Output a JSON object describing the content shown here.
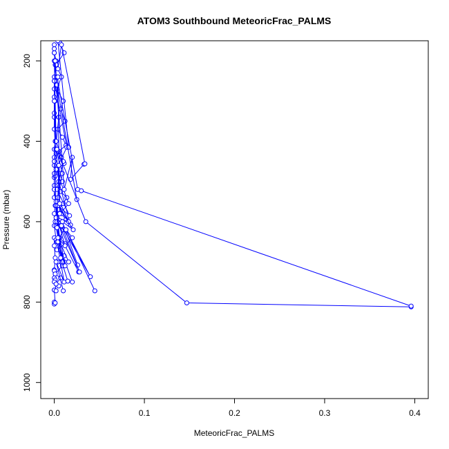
{
  "chart_data": {
    "type": "line",
    "title": "ATOM3 Southbound MeteoricFrac_PALMS",
    "xlabel": "MeteoricFrac_PALMS",
    "ylabel": "Pressure (mbar)",
    "xlim": [
      -0.015,
      0.415
    ],
    "ylim": [
      1040,
      150
    ],
    "y_reversed": true,
    "grid": false,
    "color": "#0000ff",
    "x_ticks": [
      0,
      0.1,
      0.2,
      0.3,
      0.4
    ],
    "x_tick_labels": [
      "0.0",
      "0.1",
      "0.2",
      "0.3",
      "0.4"
    ],
    "y_ticks": [
      200,
      400,
      600,
      800,
      1000
    ],
    "y_tick_labels": [
      "200",
      "400",
      "600",
      "800",
      "1000"
    ],
    "series": [
      {
        "x": [
          0.0,
          0.0,
          0.001,
          0.0,
          0.0,
          0.002,
          0.0,
          0.001,
          0.0,
          0.0,
          0.0,
          0.001,
          0.0,
          0.0,
          0.002,
          0.0,
          0.0,
          0.001,
          0.0,
          0.0,
          0.0,
          0.0,
          0.001,
          0.0,
          0.0,
          0.0,
          0.002,
          0.0,
          0.001,
          0.0,
          0.0,
          0.001,
          0.0,
          0.0,
          0.002,
          0.0,
          0.0,
          0.0,
          0.001,
          0.0,
          0.0,
          0.0
        ],
        "y": [
          805,
          800,
          802,
          770,
          770,
          772,
          740,
          745,
          750,
          720,
          722,
          690,
          660,
          640,
          645,
          610,
          580,
          560,
          540,
          520,
          510,
          490,
          486,
          480,
          460,
          440,
          430,
          420,
          400,
          370,
          330,
          300,
          270,
          240,
          200,
          180,
          160,
          170,
          210,
          250,
          290,
          340
        ]
      },
      {
        "x": [
          0.005,
          0.002,
          0.007,
          0.001,
          0.009,
          0.004,
          0.011,
          0.003,
          0.012,
          0.006,
          0.01,
          0.002,
          0.013,
          0.008,
          0.005,
          0.01,
          0.014,
          0.007,
          0.004,
          0.009,
          0.006,
          0.003,
          0.011,
          0.008,
          0.005,
          0.013,
          0.009,
          0.004,
          0.012,
          0.007,
          0.01,
          0.003,
          0.008,
          0.002,
          0.011,
          0.006
        ],
        "y": [
          760,
          755,
          740,
          730,
          710,
          700,
          685,
          670,
          655,
          640,
          620,
          610,
          595,
          580,
          570,
          555,
          540,
          525,
          510,
          500,
          480,
          470,
          455,
          440,
          425,
          410,
          390,
          370,
          350,
          320,
          300,
          270,
          240,
          210,
          180,
          155
        ]
      },
      {
        "x": [
          0.01,
          0.002,
          0.011,
          0.003,
          0.009,
          0.001,
          0.005,
          0.002,
          0.0,
          0.0,
          0.005,
          0.0
        ],
        "y": [
          772,
          700,
          750,
          650,
          700,
          600,
          640,
          560,
          520,
          450,
          340,
          180
        ]
      },
      {
        "x": [
          0.02,
          0.004,
          0.012,
          0.003,
          0.008,
          0.002,
          0.018,
          0.005,
          0.002,
          0.0
        ],
        "y": [
          750,
          650,
          710,
          600,
          690,
          550,
          608,
          500,
          420,
          300
        ]
      },
      {
        "x": [
          0.015,
          0.007,
          0.016,
          0.004,
          0.012,
          0.003,
          0.016,
          0.002,
          0.014,
          0.0
        ],
        "y": [
          748,
          690,
          700,
          640,
          660,
          590,
          555,
          470,
          415,
          250
        ]
      },
      {
        "x": [
          0.027,
          0.012,
          0.02,
          0.003,
          0.016,
          0.004,
          0.009,
          0.002,
          0.0
        ],
        "y": [
          725,
          660,
          640,
          590,
          600,
          540,
          480,
          420,
          250
        ]
      },
      {
        "x": [
          0.026,
          0.009,
          0.021,
          0.004,
          0.017,
          0.003,
          0.01,
          0.002,
          0.0
        ],
        "y": [
          708,
          600,
          620,
          560,
          585,
          520,
          450,
          400,
          200
        ]
      },
      {
        "x": [
          0.045,
          0.013,
          0.04,
          0.008,
          0.028,
          0.002,
          0.0
        ],
        "y": [
          772,
          620,
          737,
          610,
          725,
          590,
          300
        ]
      },
      {
        "x": [
          0.033,
          0.018,
          0.02,
          0.011,
          0.001
        ],
        "y": [
          457,
          495,
          440,
          520,
          200
        ]
      },
      {
        "x": [
          0.016,
          0.004
        ],
        "y": [
          415,
          150
        ]
      },
      {
        "x": [
          0.025,
          0.003
        ],
        "y": [
          545,
          260
        ]
      },
      {
        "x": [
          0.396,
          0.147,
          0.035,
          0.003
        ],
        "y": [
          812,
          802,
          600,
          420
        ]
      },
      {
        "x": [
          0.034,
          0.008,
          0.004
        ],
        "y": [
          456,
          160,
          220
        ]
      },
      {
        "x": [
          0.026,
          0.003
        ],
        "y": [
          520,
          240
        ]
      },
      {
        "x": [
          0.03,
          0.396
        ],
        "y": [
          523,
          810
        ]
      },
      {
        "x": [
          0.006,
          0.004,
          0.006,
          0.005,
          0.003
        ],
        "y": [
          555,
          240,
          580,
          460,
          615
        ]
      }
    ]
  }
}
